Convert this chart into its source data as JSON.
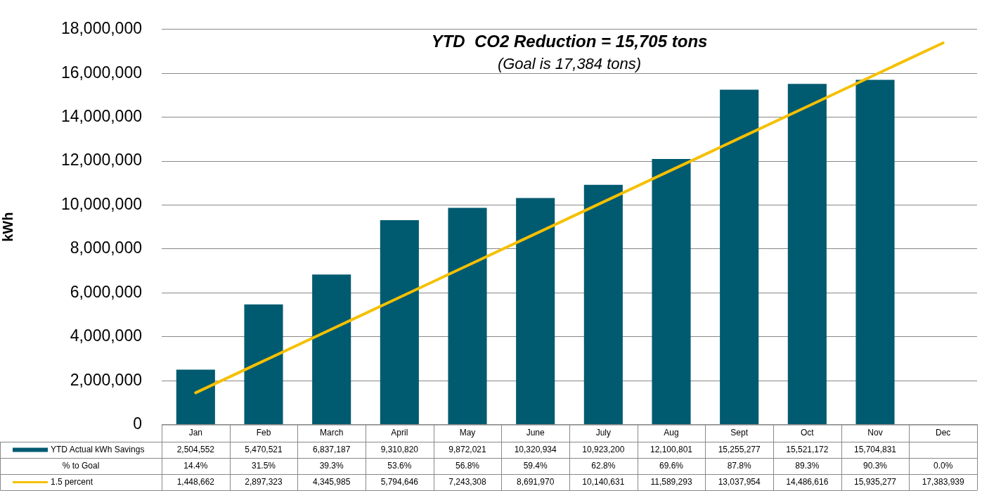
{
  "chart_data": {
    "type": "bar",
    "title": "YTD  CO2 Reduction = 15,705 tons",
    "subtitle": "(Goal is 17,384 tons)",
    "ylabel": "kWh",
    "categories": [
      "Jan",
      "Feb",
      "March",
      "April",
      "May",
      "June",
      "July",
      "Aug",
      "Sept",
      "Oct",
      "Nov",
      "Dec"
    ],
    "series": [
      {
        "name": "YTD Actual kWh Savings",
        "color": "#005a70",
        "values": [
          2504552,
          5470521,
          6837187,
          9310820,
          9872021,
          10320934,
          10923200,
          12100801,
          15255277,
          15521172,
          15704831,
          null
        ],
        "value_labels": [
          "2,504,552",
          "5,470,521",
          "6,837,187",
          "9,310,820",
          "9,872,021",
          "10,320,934",
          "10,923,200",
          "12,100,801",
          "15,255,277",
          "15,521,172",
          "15,704,831",
          null
        ]
      },
      {
        "name": "1.5 percent",
        "type": "line",
        "color": "#f5c000",
        "values": [
          1448662,
          2897323,
          4345985,
          5794646,
          7243308,
          8691970,
          10140631,
          11589293,
          13037954,
          14486616,
          15935277,
          17383939
        ],
        "value_labels": [
          "1,448,662",
          "2,897,323",
          "4,345,985",
          "5,794,646",
          "7,243,308",
          "8,691,970",
          "10,140,631",
          "11,589,293",
          "13,037,954",
          "14,486,616",
          "15,935,277",
          "17,383,939"
        ]
      }
    ],
    "annotations": [
      "% to Goal",
      "14.4%",
      "31.5%",
      "39.3%",
      "53.6%",
      "56.8%",
      "59.4%",
      "62.8%",
      "69.6%",
      "87.8%",
      "89.3%",
      "90.3%",
      "0.0%"
    ],
    "ylim": [
      0,
      18000000
    ],
    "yticks": [
      0,
      {
        "value": 2000000,
        "label": "2,000,000"
      },
      {
        "value": 4000000,
        "label": "4,000,000"
      },
      {
        "value": 6000000,
        "label": "6,000,000"
      },
      {
        "value": 8000000,
        "label": "8,000,000"
      },
      {
        "value": 10000000,
        "label": "10,000,000"
      },
      {
        "value": 12000000,
        "label": "12,000,000"
      },
      {
        "value": 14000000,
        "label": "14,000,000"
      },
      {
        "value": 16000000,
        "label": "16,000,000"
      },
      {
        "value": 18000000,
        "label": "18,000,000"
      }
    ],
    "grid": "y",
    "legend": "bottom",
    "marker": "none",
    "line_style": "solid"
  }
}
